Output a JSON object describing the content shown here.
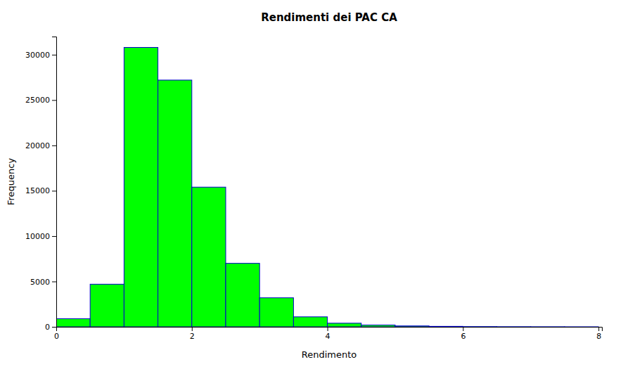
{
  "chart_data": {
    "type": "histogram",
    "title": "Rendimenti dei PAC CA",
    "xlabel": "Rendimento",
    "ylabel": "Frequency",
    "bins": [
      0.0,
      0.5,
      1.0,
      1.5,
      2.0,
      2.5,
      3.0,
      3.5,
      4.0,
      4.5,
      5.0,
      5.5,
      6.0,
      6.5,
      7.0,
      7.5,
      8.0
    ],
    "values": [
      900,
      4700,
      30800,
      27200,
      15400,
      7000,
      3200,
      1100,
      400,
      200,
      100,
      50,
      25,
      15,
      10,
      5
    ],
    "color": "#00FF00",
    "xlim": [
      0,
      8.05
    ],
    "xticks": [
      0,
      2,
      4,
      6,
      8
    ],
    "ylim": [
      0,
      32000
    ],
    "yticks": [
      0,
      5000,
      10000,
      15000,
      20000,
      25000,
      30000
    ],
    "grid": false
  }
}
